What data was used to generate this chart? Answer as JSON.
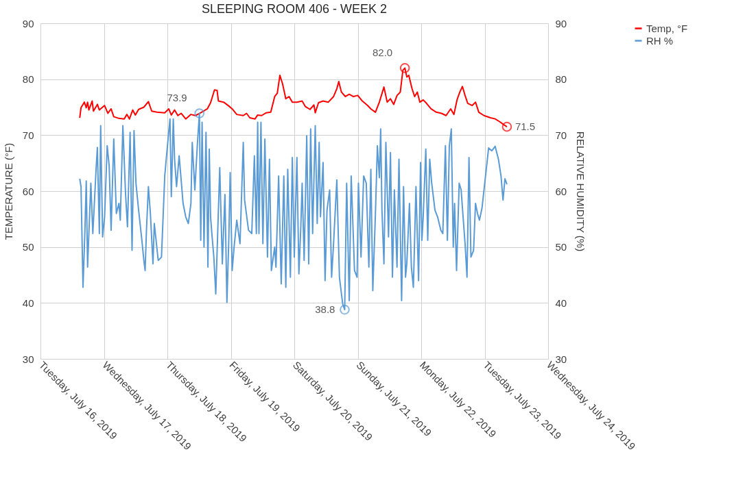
{
  "chart_data": {
    "type": "line",
    "title": "SLEEPING ROOM 406 - WEEK 2",
    "ylabel": "TEMPERATURE (°F)",
    "y2label": "RELATIVE HUMIDITY (%)",
    "xlim": [
      "2019-07-16",
      "2019-07-24"
    ],
    "xticks": [
      {
        "value": "2019-07-16",
        "label": "Tuesday, July 16, 2019"
      },
      {
        "value": "2019-07-17",
        "label": "Wednesday, July 17, 2019"
      },
      {
        "value": "2019-07-18",
        "label": "Thursday, July 18, 2019"
      },
      {
        "value": "2019-07-19",
        "label": "Friday, July 19, 2019"
      },
      {
        "value": "2019-07-20",
        "label": "Saturday, July 20, 2019"
      },
      {
        "value": "2019-07-21",
        "label": "Sunday, July 21, 2019"
      },
      {
        "value": "2019-07-22",
        "label": "Monday, July 22, 2019"
      },
      {
        "value": "2019-07-23",
        "label": "Tuesday, July 23, 2019"
      },
      {
        "value": "2019-07-24",
        "label": "Wednesday, July 24, 2019"
      }
    ],
    "ylim": [
      30,
      90
    ],
    "yticks": [
      30,
      40,
      50,
      60,
      70,
      80,
      90
    ],
    "y2lim": [
      30,
      90
    ],
    "y2ticks": [
      30,
      40,
      50,
      60,
      70,
      80,
      90
    ],
    "grid": true,
    "legend": "right",
    "marker": "none",
    "line_style": "solid",
    "series": [
      {
        "name": "Temp, °F",
        "color": "#ff0000",
        "axis": "y",
        "x": [
          "2019-07-16T14:51",
          "2019-07-16T15:20",
          "2019-07-16T16:35",
          "2019-07-16T17:19",
          "2019-07-16T17:49",
          "2019-07-16T18:18",
          "2019-07-16T19:33",
          "2019-07-16T20:02",
          "2019-07-16T21:31",
          "2019-07-16T22:16",
          "2019-07-17T00:15",
          "2019-07-17T01:29",
          "2019-07-17T02:43",
          "2019-07-17T03:43",
          "2019-07-17T05:41",
          "2019-07-17T07:40",
          "2019-07-17T08:40",
          "2019-07-17T09:39",
          "2019-07-17T10:53",
          "2019-07-17T11:53",
          "2019-07-17T13:07",
          "2019-07-17T15:06",
          "2019-07-17T16:49",
          "2019-07-17T18:04",
          "2019-07-17T20:02",
          "2019-07-17T23:00",
          "2019-07-18T00:30",
          "2019-07-18T01:29",
          "2019-07-18T02:43",
          "2019-07-18T03:58",
          "2019-07-18T05:12",
          "2019-07-18T06:56",
          "2019-07-18T08:54",
          "2019-07-18T10:38",
          "2019-07-18T12:37",
          "2019-07-18T15:06",
          "2019-07-18T16:20",
          "2019-07-18T17:49",
          "2019-07-18T18:48",
          "2019-07-18T19:18",
          "2019-07-18T21:17",
          "2019-07-18T23:15",
          "2019-07-19T00:30",
          "2019-07-19T02:14",
          "2019-07-19T04:42",
          "2019-07-19T05:56",
          "2019-07-19T07:10",
          "2019-07-19T09:09",
          "2019-07-19T10:09",
          "2019-07-19T11:38",
          "2019-07-19T13:22",
          "2019-07-19T15:06",
          "2019-07-19T16:35",
          "2019-07-19T17:34",
          "2019-07-19T18:33",
          "2019-07-19T19:33",
          "2019-07-19T20:47",
          "2019-07-19T22:01",
          "2019-07-19T23:15",
          "2019-07-20T00:59",
          "2019-07-20T02:58",
          "2019-07-20T04:12",
          "2019-07-20T05:56",
          "2019-07-20T07:25",
          "2019-07-20T07:55",
          "2019-07-20T09:09",
          "2019-07-20T10:53",
          "2019-07-20T12:52",
          "2019-07-20T14:51",
          "2019-07-20T16:05",
          "2019-07-20T16:49",
          "2019-07-20T17:49",
          "2019-07-20T19:18",
          "2019-07-20T20:47",
          "2019-07-20T22:16",
          "2019-07-21T00:00",
          "2019-07-21T01:44",
          "2019-07-21T03:43",
          "2019-07-21T04:57",
          "2019-07-21T06:41",
          "2019-07-21T08:10",
          "2019-07-21T09:54",
          "2019-07-21T11:08",
          "2019-07-21T12:22",
          "2019-07-21T13:36",
          "2019-07-21T14:51",
          "2019-07-21T16:05",
          "2019-07-21T17:04",
          "2019-07-21T17:49",
          "2019-07-21T18:33",
          "2019-07-21T19:18",
          "2019-07-21T20:32",
          "2019-07-21T21:31",
          "2019-07-21T22:31",
          "2019-07-21T23:30",
          "2019-07-22T00:45",
          "2019-07-22T01:59",
          "2019-07-22T03:43",
          "2019-07-22T05:41",
          "2019-07-22T07:40",
          "2019-07-22T09:24",
          "2019-07-22T11:08",
          "2019-07-22T12:22",
          "2019-07-22T13:36",
          "2019-07-22T14:36",
          "2019-07-22T15:35",
          "2019-07-22T16:35",
          "2019-07-22T17:34",
          "2019-07-22T19:18",
          "2019-07-22T20:32",
          "2019-07-22T21:46",
          "2019-07-22T23:45",
          "2019-07-23T02:14",
          "2019-07-23T03:58",
          "2019-07-23T05:41",
          "2019-07-23T07:10",
          "2019-07-23T08:25"
        ],
        "values": [
          73.1,
          74.9,
          75.9,
          74.9,
          75.9,
          74.5,
          76.1,
          74.3,
          75.5,
          74.5,
          75.3,
          73.9,
          74.7,
          73.3,
          73.0,
          72.9,
          73.7,
          72.9,
          74.5,
          73.6,
          74.6,
          75.0,
          76.0,
          74.3,
          74.1,
          74.0,
          74.7,
          73.6,
          74.5,
          73.5,
          73.9,
          72.9,
          73.7,
          73.5,
          74.0,
          74.7,
          75.8,
          78.1,
          78.0,
          76.1,
          75.9,
          75.2,
          74.7,
          73.7,
          73.5,
          73.9,
          73.1,
          72.9,
          73.6,
          73.5,
          74.0,
          74.1,
          76.9,
          77.5,
          80.7,
          79.2,
          76.5,
          76.9,
          75.9,
          75.9,
          76.1,
          75.1,
          74.6,
          75.4,
          74.0,
          75.8,
          76.1,
          75.9,
          76.9,
          78.3,
          79.6,
          77.7,
          76.9,
          77.3,
          76.9,
          77.1,
          76.1,
          75.3,
          74.7,
          74.1,
          75.9,
          78.6,
          75.9,
          76.5,
          75.5,
          77.1,
          77.7,
          81.6,
          82.0,
          80.4,
          80.7,
          78.3,
          76.9,
          77.7,
          75.9,
          76.3,
          75.7,
          74.7,
          74.1,
          73.9,
          73.5,
          74.7,
          73.7,
          76.4,
          77.7,
          78.7,
          77.1,
          75.7,
          75.3,
          75.9,
          74.1,
          73.5,
          73.1,
          72.9,
          72.4,
          71.9,
          71.5
        ]
      },
      {
        "name": "RH %",
        "color": "#5b9bd5",
        "axis": "y2",
        "x": [
          "2019-07-16T14:51",
          "2019-07-16T15:20",
          "2019-07-16T16:05",
          "2019-07-16T16:49",
          "2019-07-16T17:19",
          "2019-07-16T17:49",
          "2019-07-16T19:03",
          "2019-07-16T19:48",
          "2019-07-16T21:02",
          "2019-07-16T21:31",
          "2019-07-16T22:16",
          "2019-07-16T22:46",
          "2019-07-16T23:30",
          "2019-07-17T00:15",
          "2019-07-17T01:14",
          "2019-07-17T01:59",
          "2019-07-17T02:43",
          "2019-07-17T03:43",
          "2019-07-17T04:42",
          "2019-07-17T05:41",
          "2019-07-17T06:11",
          "2019-07-17T07:10",
          "2019-07-17T08:10",
          "2019-07-17T08:54",
          "2019-07-17T09:54",
          "2019-07-17T10:38",
          "2019-07-17T11:23",
          "2019-07-17T12:07",
          "2019-07-17T13:07",
          "2019-07-17T14:21",
          "2019-07-17T15:06",
          "2019-07-17T15:35",
          "2019-07-17T16:05",
          "2019-07-17T16:49",
          "2019-07-17T17:34",
          "2019-07-17T18:33",
          "2019-07-17T19:03",
          "2019-07-17T20:32",
          "2019-07-17T21:46",
          "2019-07-17T23:00",
          "2019-07-18T00:15",
          "2019-07-18T00:59",
          "2019-07-18T01:29",
          "2019-07-18T02:14",
          "2019-07-18T02:43",
          "2019-07-18T03:28",
          "2019-07-18T04:27",
          "2019-07-18T05:56",
          "2019-07-18T06:56",
          "2019-07-18T07:55",
          "2019-07-18T08:54",
          "2019-07-18T09:24",
          "2019-07-18T10:23",
          "2019-07-18T11:23",
          "2019-07-18T12:07",
          "2019-07-18T12:37",
          "2019-07-18T13:07",
          "2019-07-18T13:51",
          "2019-07-18T14:36",
          "2019-07-18T15:20",
          "2019-07-18T15:50",
          "2019-07-18T16:20",
          "2019-07-18T16:49",
          "2019-07-18T17:34",
          "2019-07-18T18:18",
          "2019-07-18T19:48",
          "2019-07-18T20:47",
          "2019-07-18T21:46",
          "2019-07-18T22:31",
          "2019-07-18T23:15",
          "2019-07-18T23:45",
          "2019-07-19T00:30",
          "2019-07-19T01:14",
          "2019-07-19T02:14",
          "2019-07-19T03:28",
          "2019-07-19T04:42",
          "2019-07-19T05:12",
          "2019-07-19T06:41",
          "2019-07-19T07:55",
          "2019-07-19T08:54",
          "2019-07-19T09:39",
          "2019-07-19T10:09",
          "2019-07-19T10:38",
          "2019-07-19T11:23",
          "2019-07-19T12:07",
          "2019-07-19T12:52",
          "2019-07-19T13:51",
          "2019-07-19T14:36",
          "2019-07-19T15:20",
          "2019-07-19T16:35",
          "2019-07-19T17:04",
          "2019-07-19T18:04",
          "2019-07-19T19:03",
          "2019-07-19T20:02",
          "2019-07-19T20:47",
          "2019-07-19T21:31",
          "2019-07-19T22:31",
          "2019-07-19T23:15",
          "2019-07-20T00:00",
          "2019-07-20T00:59",
          "2019-07-20T01:44",
          "2019-07-20T02:28",
          "2019-07-20T02:58",
          "2019-07-20T03:43",
          "2019-07-20T04:42",
          "2019-07-20T05:27",
          "2019-07-20T06:11",
          "2019-07-20T06:56",
          "2019-07-20T07:55",
          "2019-07-20T08:40",
          "2019-07-20T09:24",
          "2019-07-20T09:54",
          "2019-07-20T10:53",
          "2019-07-20T11:38",
          "2019-07-20T12:22",
          "2019-07-20T13:22",
          "2019-07-20T14:06",
          "2019-07-20T14:51",
          "2019-07-20T16:05",
          "2019-07-20T17:04",
          "2019-07-20T18:18",
          "2019-07-20T19:03",
          "2019-07-20T19:48",
          "2019-07-20T20:47",
          "2019-07-20T21:31",
          "2019-07-20T22:46",
          "2019-07-20T23:45",
          "2019-07-21T00:15",
          "2019-07-21T01:14",
          "2019-07-21T02:14",
          "2019-07-21T03:13",
          "2019-07-21T04:12",
          "2019-07-21T04:57",
          "2019-07-21T05:41",
          "2019-07-21T06:41",
          "2019-07-21T07:25",
          "2019-07-21T08:10",
          "2019-07-21T08:40",
          "2019-07-21T09:09",
          "2019-07-21T09:54",
          "2019-07-21T10:38",
          "2019-07-21T11:38",
          "2019-07-21T12:22",
          "2019-07-21T13:07",
          "2019-07-21T13:51",
          "2019-07-21T14:51",
          "2019-07-21T15:35",
          "2019-07-21T16:35",
          "2019-07-21T17:19",
          "2019-07-21T18:04",
          "2019-07-21T18:33",
          "2019-07-21T19:33",
          "2019-07-21T20:17",
          "2019-07-21T21:02",
          "2019-07-21T22:01",
          "2019-07-21T23:00",
          "2019-07-21T23:45",
          "2019-07-22T00:15",
          "2019-07-22T00:45",
          "2019-07-22T01:44",
          "2019-07-22T02:28",
          "2019-07-22T03:13",
          "2019-07-22T03:58",
          "2019-07-22T05:12",
          "2019-07-22T06:11",
          "2019-07-22T07:25",
          "2019-07-22T08:10",
          "2019-07-22T09:09",
          "2019-07-22T09:54",
          "2019-07-22T10:38",
          "2019-07-22T11:23",
          "2019-07-22T12:07",
          "2019-07-22T12:37",
          "2019-07-22T13:22",
          "2019-07-22T14:21",
          "2019-07-22T15:06",
          "2019-07-22T15:50",
          "2019-07-22T16:35",
          "2019-07-22T17:19",
          "2019-07-22T18:04",
          "2019-07-22T18:48",
          "2019-07-22T19:48",
          "2019-07-22T20:32",
          "2019-07-22T21:17",
          "2019-07-22T22:01",
          "2019-07-22T23:00",
          "2019-07-23T01:29",
          "2019-07-23T02:43",
          "2019-07-23T03:58",
          "2019-07-23T05:12",
          "2019-07-23T06:11",
          "2019-07-23T06:56",
          "2019-07-23T07:40",
          "2019-07-23T08:25"
        ],
        "values": [
          62.2,
          60.8,
          42.8,
          53.0,
          61.8,
          46.4,
          61.4,
          52.4,
          63.9,
          67.8,
          52.4,
          71.7,
          51.8,
          55.4,
          68.1,
          64.5,
          53.0,
          69.3,
          56.0,
          57.8,
          54.8,
          71.7,
          59.6,
          53.6,
          70.5,
          49.4,
          70.8,
          61.4,
          56.6,
          51.2,
          47.6,
          45.8,
          53.0,
          60.8,
          56.0,
          47.0,
          54.2,
          47.6,
          48.2,
          62.7,
          69.3,
          72.9,
          59.0,
          72.9,
          65.7,
          60.8,
          66.3,
          57.8,
          55.4,
          54.2,
          57.8,
          68.7,
          60.2,
          68.7,
          73.9,
          51.2,
          72.3,
          50.0,
          70.5,
          46.4,
          67.5,
          55.4,
          52.4,
          48.2,
          41.6,
          64.2,
          47.0,
          59.4,
          40.1,
          51.8,
          63.3,
          45.8,
          50.0,
          54.8,
          50.6,
          68.7,
          58.4,
          53.0,
          52.4,
          66.3,
          52.4,
          72.3,
          52.4,
          72.3,
          50.6,
          69.3,
          48.2,
          65.7,
          45.8,
          50.0,
          46.4,
          62.7,
          43.4,
          62.7,
          42.8,
          63.9,
          44.6,
          66.0,
          48.2,
          66.0,
          45.2,
          53.6,
          61.4,
          47.6,
          69.9,
          47.0,
          71.1,
          52.4,
          71.7,
          54.2,
          68.7,
          55.4,
          65.1,
          44.0,
          56.6,
          60.2,
          44.6,
          50.6,
          62.0,
          44.6,
          39.8,
          38.8,
          61.4,
          40.4,
          62.7,
          45.8,
          44.6,
          61.4,
          48.2,
          62.7,
          61.4,
          46.4,
          63.9,
          42.2,
          56.0,
          68.1,
          62.4,
          71.1,
          56.6,
          47.0,
          68.7,
          51.8,
          66.9,
          44.6,
          60.2,
          46.4,
          65.7,
          40.4,
          60.8,
          44.6,
          47.0,
          57.8,
          46.4,
          42.8,
          60.8,
          44.0,
          65.1,
          51.2,
          55.4,
          67.5,
          51.2,
          65.7,
          61.4,
          56.6,
          55.4,
          53.0,
          52.4,
          68.1,
          51.2,
          68.1,
          71.1,
          50.0,
          57.8,
          45.8,
          61.4,
          60.2,
          55.4,
          50.6,
          44.6,
          66.0,
          48.2,
          49.4,
          57.8,
          56.0,
          54.8,
          57.0,
          67.7,
          67.2,
          68.0,
          65.7,
          62.7,
          58.4,
          62.2,
          61.2
        ]
      }
    ],
    "annotations": [
      {
        "text": "73.9",
        "x": "2019-07-18T12:07",
        "y": 73.9
      },
      {
        "text": "38.8",
        "x": "2019-07-20T19:03",
        "y": 38.8
      },
      {
        "text": "82.0",
        "x": "2019-07-21T17:49",
        "y": 82.0
      },
      {
        "text": "71.5",
        "x": "2019-07-23T08:25",
        "y": 71.5
      }
    ]
  }
}
